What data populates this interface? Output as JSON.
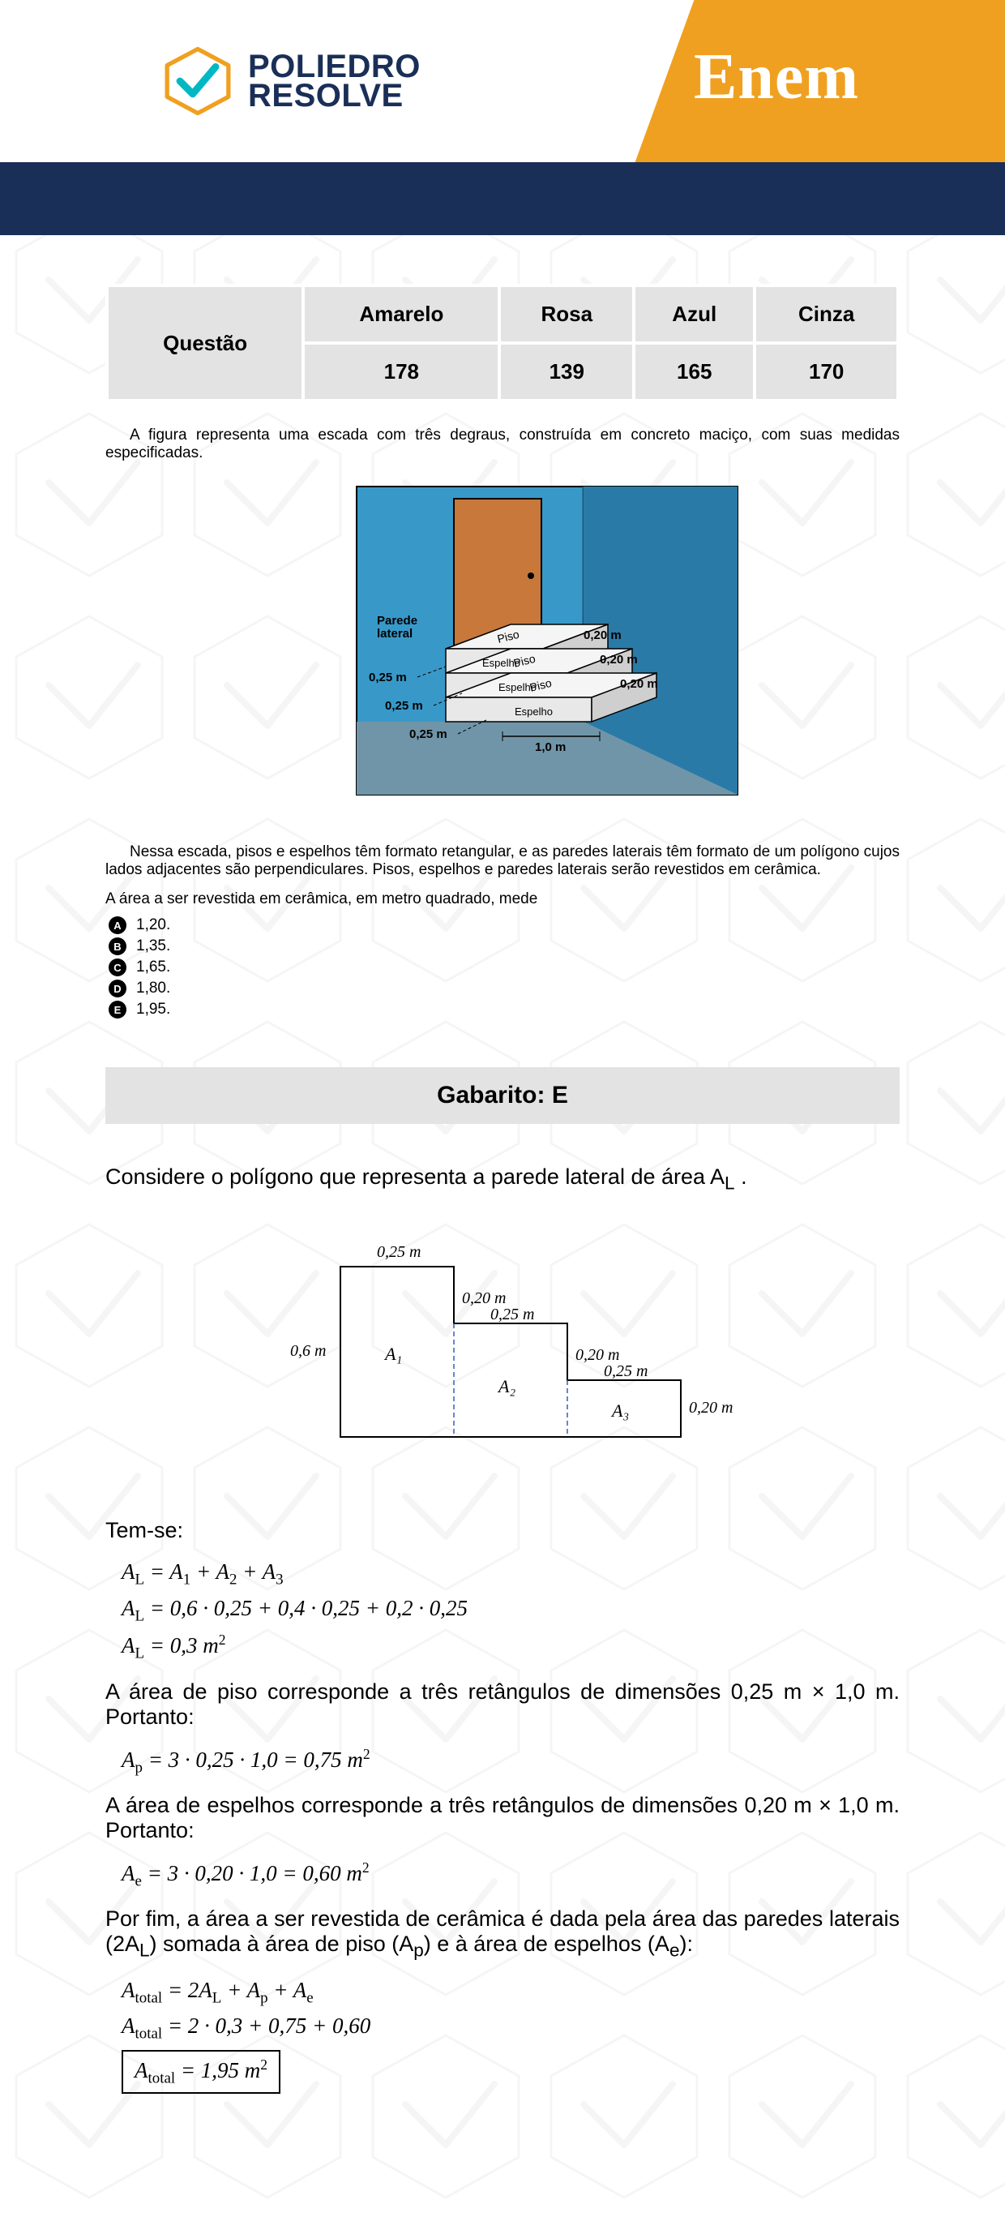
{
  "header": {
    "logo_line1": "POLIEDRO",
    "logo_line2": "RESOLVE",
    "exam": "Enem",
    "colors": {
      "orange": "#f0a020",
      "navy": "#1a2f57",
      "white": "#ffffff",
      "logo_teal": "#00b8c4"
    }
  },
  "question_table": {
    "label": "Questão",
    "columns": [
      "Amarelo",
      "Rosa",
      "Azul",
      "Cinza"
    ],
    "values": [
      "178",
      "139",
      "165",
      "170"
    ]
  },
  "problem": {
    "intro": "A figura representa uma escada com três degraus, construída em concreto maciço, com suas medidas especificadas.",
    "figure": {
      "labels": {
        "parede_lateral": "Parede\nlateral",
        "piso": "Piso",
        "espelho": "Espelho"
      },
      "dimensions": {
        "step_width": "0,25 m",
        "step_height": "0,20 m",
        "base_length": "1,0 m"
      },
      "colors": {
        "wall": "#3899c9",
        "wall_corner": "#2a7aa8",
        "door": "#c7783a",
        "floor": "#7195a8",
        "step_face": "#e8e8e8",
        "step_top": "#f5f5f5",
        "step_side": "#cfcfcf"
      }
    },
    "body": "Nessa escada, pisos e espelhos têm formato retangular, e as paredes laterais têm formato de um polígono cujos lados adjacentes são perpendiculares. Pisos, espelhos e paredes laterais serão revestidos em cerâmica.",
    "prompt": "A área a ser revestida em cerâmica, em metro quadrado, mede",
    "options": [
      {
        "letter": "A",
        "text": "1,20."
      },
      {
        "letter": "B",
        "text": "1,35."
      },
      {
        "letter": "C",
        "text": "1,65."
      },
      {
        "letter": "D",
        "text": "1,80."
      },
      {
        "letter": "E",
        "text": "1,95."
      }
    ]
  },
  "answer": {
    "label": "Gabarito: E"
  },
  "solution": {
    "intro": "Considere o polígono que representa a parede lateral de área  A",
    "intro_sub": "L",
    "intro_tail": " .",
    "diagram": {
      "dims": {
        "top_w1": "0,25 m",
        "h1": "0,20 m",
        "w2": "0,25 m",
        "h2": "0,20 m",
        "w3": "0,25 m",
        "h3": "0,20 m",
        "left_h": "0,6 m"
      },
      "areas": [
        "A₁",
        "A₂",
        "A₃"
      ]
    },
    "temse": "Tem-se:",
    "eq_AL1": "A<sub>L</sub> = A<sub>1</sub> + A<sub>2</sub> + A<sub>3</sub>",
    "eq_AL2": "A<sub>L</sub> = 0,6 · 0,25 + 0,4 · 0,25 + 0,2 · 0,25",
    "eq_AL3": "A<sub>L</sub> = 0,3 m<sup>2</sup>",
    "p_piso": "A área de piso corresponde a três retângulos de dimensões 0,25 m × 1,0 m. Portanto:",
    "eq_Ap": "A<sub>p</sub> = 3 · 0,25 · 1,0 = 0,75 m<sup>2</sup>",
    "p_espelho": "A área de espelhos corresponde a três retângulos de dimensões 0,20 m × 1,0 m. Portanto:",
    "eq_Ae": "A<sub>e</sub> = 3 · 0,20 · 1,0 = 0,60 m<sup>2</sup>",
    "p_final": "Por fim, a área a ser revestida de cerâmica é dada pela área das paredes laterais (2A<sub>L</sub>) somada à área de piso (A<sub>p</sub>) e à área de espelhos (A<sub>e</sub>):",
    "eq_tot1": "A<sub>total</sub> = 2A<sub>L</sub> + A<sub>p</sub> + A<sub>e</sub>",
    "eq_tot2": "A<sub>total</sub> = 2 · 0,3 + 0,75 + 0,60",
    "eq_tot3": "A<sub>total</sub> = 1,95 m<sup>2</sup>"
  }
}
